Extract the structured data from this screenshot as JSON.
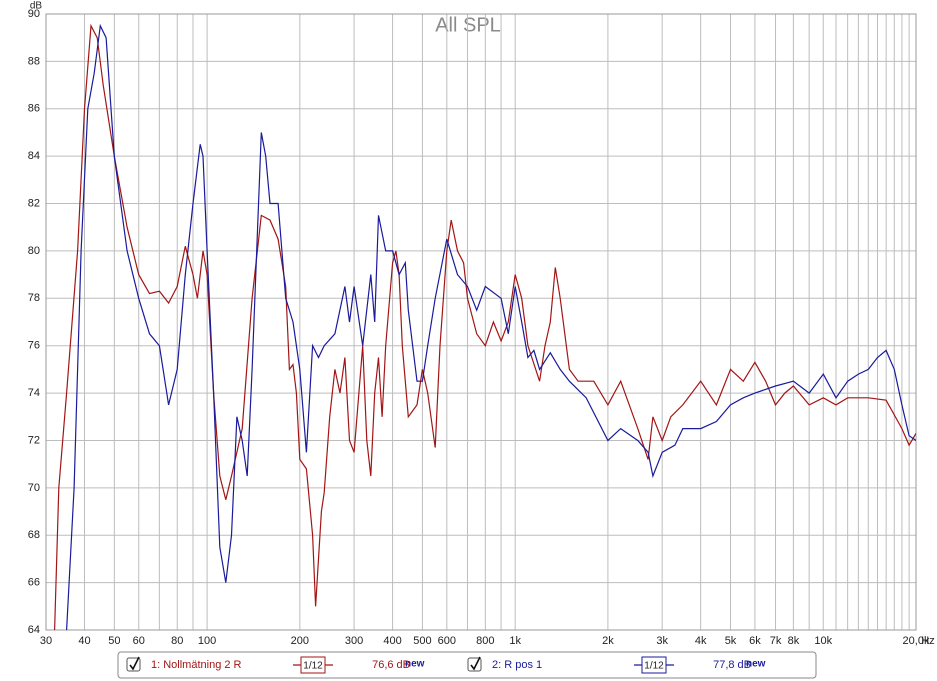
{
  "chart_data": {
    "type": "line",
    "title": "All SPL",
    "y_label": "dB",
    "x_label": "Hz",
    "xscale": "log",
    "grid": true,
    "xlim": [
      30,
      20000
    ],
    "ylim": [
      64,
      90
    ],
    "yticks": [
      64,
      66,
      68,
      70,
      72,
      74,
      76,
      78,
      80,
      82,
      84,
      86,
      88,
      90
    ],
    "xticks": [
      30,
      40,
      50,
      60,
      80,
      100,
      200,
      300,
      400,
      500,
      600,
      800,
      {
        "value": 1000,
        "label": "1k"
      },
      {
        "value": 2000,
        "label": "2k"
      },
      {
        "value": 3000,
        "label": "3k"
      },
      {
        "value": 4000,
        "label": "4k"
      },
      {
        "value": 5000,
        "label": "5k"
      },
      {
        "value": 6000,
        "label": "6k"
      },
      {
        "value": 7000,
        "label": "7k"
      },
      {
        "value": 8000,
        "label": "8k"
      },
      {
        "value": 10000,
        "label": "10k"
      },
      {
        "value": 20000,
        "label": "20,0k"
      }
    ],
    "x_minor_ticks": [
      70,
      90,
      700,
      900,
      9000,
      11000,
      12000,
      13000,
      14000,
      15000,
      16000,
      17000,
      18000,
      19000
    ],
    "series": [
      {
        "name": "1: Nollmätning 2 R",
        "color": "#a31515",
        "smoothing": "1/12",
        "level": "76,6 dB",
        "tag": "new",
        "x": [
          32,
          33,
          35,
          38,
          40,
          42,
          44,
          46,
          50,
          55,
          60,
          65,
          70,
          75,
          80,
          85,
          90,
          93,
          97,
          100,
          105,
          110,
          115,
          120,
          130,
          140,
          150,
          160,
          170,
          180,
          185,
          190,
          195,
          200,
          210,
          220,
          225,
          235,
          240,
          250,
          260,
          270,
          280,
          290,
          300,
          320,
          330,
          340,
          350,
          360,
          370,
          380,
          400,
          410,
          420,
          430,
          450,
          480,
          500,
          520,
          550,
          570,
          600,
          620,
          650,
          680,
          700,
          750,
          800,
          850,
          900,
          950,
          1000,
          1050,
          1100,
          1200,
          1250,
          1300,
          1350,
          1400,
          1500,
          1600,
          1800,
          2000,
          2200,
          2500,
          2700,
          2800,
          3000,
          3200,
          3500,
          4000,
          4500,
          5000,
          5500,
          6000,
          6500,
          7000,
          7500,
          8000,
          9000,
          10000,
          11000,
          12000,
          14000,
          16000,
          18000,
          19000,
          20000
        ],
        "values": [
          64,
          70,
          74,
          80,
          86,
          89.5,
          89,
          87,
          84,
          81,
          79,
          78.2,
          78.3,
          77.8,
          78.5,
          80.2,
          79,
          78,
          80,
          79,
          74,
          70.5,
          69.5,
          70.5,
          72.5,
          78,
          81.5,
          81.3,
          80.5,
          78.5,
          75,
          75.2,
          74,
          71.2,
          70.8,
          68,
          65,
          69,
          69.8,
          73,
          75,
          74,
          75.5,
          72,
          71.5,
          76,
          72,
          70.5,
          74,
          75.5,
          73,
          76,
          79.5,
          80,
          79,
          76,
          73,
          73.5,
          75,
          74,
          71.7,
          76,
          80,
          81.3,
          80,
          79.5,
          78,
          76.5,
          76,
          77,
          76.2,
          77,
          79,
          78,
          76,
          74.5,
          76,
          77,
          79.3,
          78,
          75,
          74.5,
          74.5,
          73.5,
          74.5,
          72.5,
          71.2,
          73,
          72,
          73,
          73.5,
          74.5,
          73.5,
          75,
          74.5,
          75.3,
          74.5,
          73.5,
          74,
          74.3,
          73.5,
          73.8,
          73.5,
          73.8,
          73.8,
          73.7,
          72.5,
          71.8,
          72.3
        ]
      },
      {
        "name": "2: R pos 1",
        "color": "#1a1a9c",
        "smoothing": "1/12",
        "level": "77,8 dB",
        "tag": "new",
        "x": [
          35,
          37,
          39,
          41,
          43,
          45,
          47,
          50,
          55,
          60,
          65,
          70,
          72,
          75,
          80,
          85,
          90,
          95,
          97,
          100,
          105,
          110,
          115,
          120,
          125,
          130,
          135,
          140,
          150,
          155,
          160,
          170,
          180,
          190,
          200,
          210,
          220,
          230,
          240,
          260,
          280,
          290,
          300,
          320,
          340,
          350,
          360,
          380,
          400,
          420,
          440,
          450,
          480,
          500,
          520,
          550,
          600,
          650,
          700,
          750,
          800,
          900,
          950,
          1000,
          1050,
          1100,
          1150,
          1200,
          1300,
          1400,
          1500,
          1700,
          2000,
          2200,
          2500,
          2700,
          2800,
          3000,
          3300,
          3500,
          4000,
          4500,
          5000,
          5500,
          6000,
          7000,
          8000,
          9000,
          10000,
          11000,
          12000,
          13000,
          14000,
          15000,
          16000,
          17000,
          18000,
          19000,
          20000
        ],
        "values": [
          64,
          70,
          80,
          86,
          87.5,
          89.5,
          89,
          84,
          80,
          78,
          76.5,
          76,
          75,
          73.5,
          75,
          79,
          82,
          84.5,
          84,
          80,
          74,
          67.5,
          66,
          68,
          73,
          72,
          70.5,
          75,
          85,
          84,
          82,
          82,
          78,
          77,
          75,
          71.5,
          76,
          75.5,
          76,
          76.5,
          78.5,
          77,
          78.5,
          76,
          79,
          77,
          81.5,
          80,
          80,
          79,
          79.5,
          77.5,
          74.5,
          74.5,
          76,
          78,
          80.5,
          79,
          78.5,
          77.5,
          78.5,
          78,
          76.5,
          78.5,
          77,
          75.5,
          75.8,
          75,
          75.7,
          75,
          74.5,
          73.8,
          72,
          72.5,
          72,
          71.5,
          70.5,
          71.5,
          71.8,
          72.5,
          72.5,
          72.8,
          73.5,
          73.8,
          74,
          74.3,
          74.5,
          74,
          74.8,
          73.8,
          74.5,
          74.8,
          75,
          75.5,
          75.8,
          75,
          73.5,
          72.2,
          72
        ]
      }
    ]
  }
}
